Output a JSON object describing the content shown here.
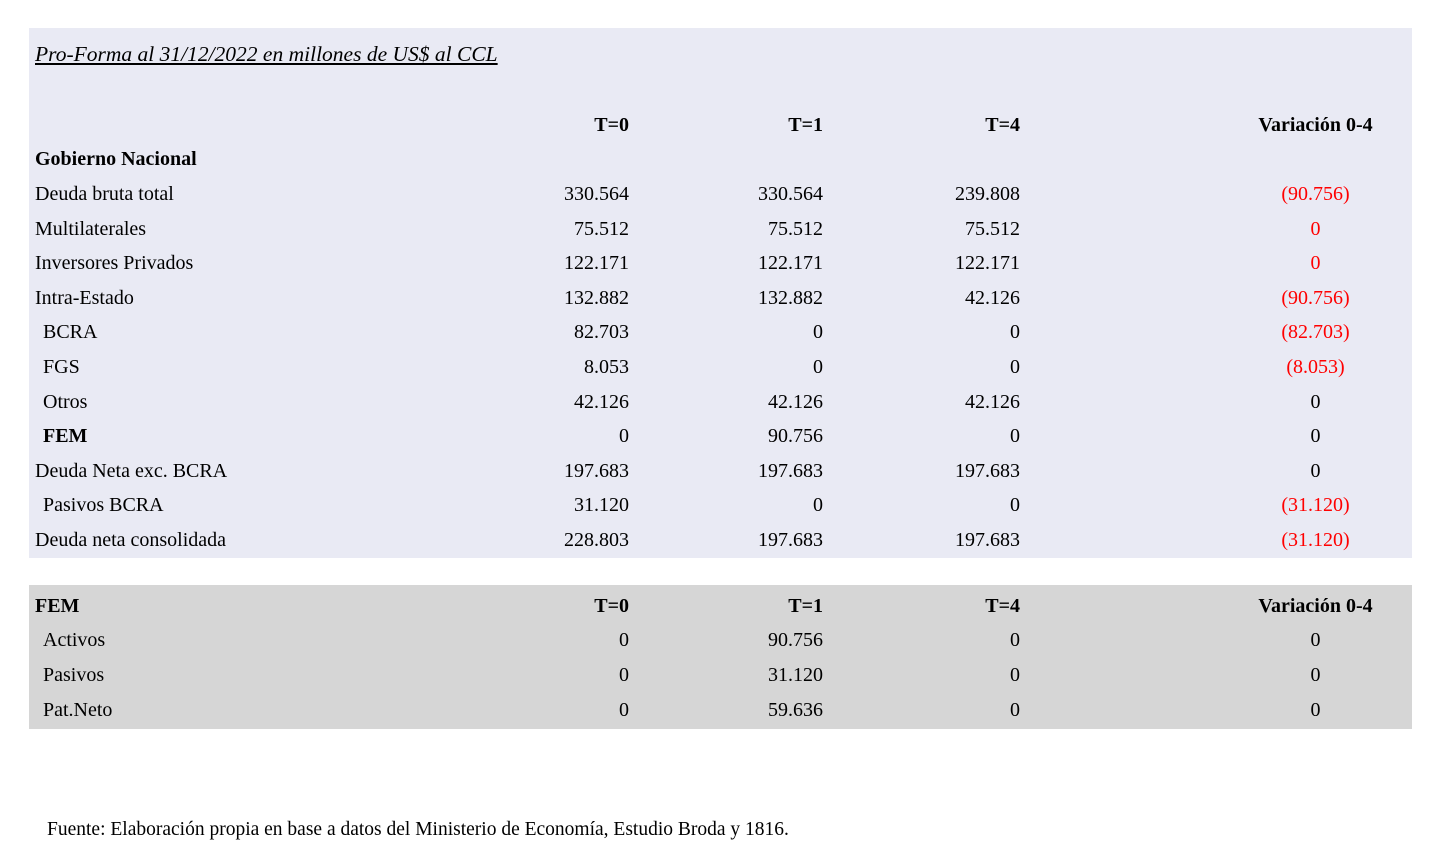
{
  "title": "Pro-Forma al 31/12/2022 en millones de US$ al CCL",
  "columns": {
    "t0": "T=0",
    "t1": "T=1",
    "t4": "T=4",
    "variation": "Variación 0-4"
  },
  "table1": {
    "rows": [
      {
        "label": "Gobierno Nacional",
        "t0": "",
        "t1": "",
        "t4": "",
        "variation": "",
        "negative": false
      },
      {
        "label": "Deuda bruta total",
        "t0": "330.564",
        "t1": "330.564",
        "t4": "239.808",
        "variation": "(90.756)",
        "negative": true
      },
      {
        "label": "Multilaterales",
        "t0": "75.512",
        "t1": "75.512",
        "t4": "75.512",
        "variation": "0",
        "negative": true
      },
      {
        "label": "Inversores Privados",
        "t0": "122.171",
        "t1": "122.171",
        "t4": "122.171",
        "variation": "0",
        "negative": true
      },
      {
        "label": "Intra-Estado",
        "t0": "132.882",
        "t1": "132.882",
        "t4": "42.126",
        "variation": "(90.756)",
        "negative": true
      },
      {
        "label": "BCRA",
        "t0": "82.703",
        "t1": "0",
        "t4": "0",
        "variation": "(82.703)",
        "negative": true
      },
      {
        "label": "FGS",
        "t0": "8.053",
        "t1": "0",
        "t4": "0",
        "variation": "(8.053)",
        "negative": true
      },
      {
        "label": "Otros",
        "t0": "42.126",
        "t1": "42.126",
        "t4": "42.126",
        "variation": "0",
        "negative": false
      },
      {
        "label": "FEM",
        "t0": "0",
        "t1": "90.756",
        "t4": "0",
        "variation": "0",
        "negative": false
      },
      {
        "label": "Deuda Neta exc. BCRA",
        "t0": "197.683",
        "t1": "197.683",
        "t4": "197.683",
        "variation": "0",
        "negative": false
      },
      {
        "label": "Pasivos BCRA",
        "t0": "31.120",
        "t1": "0",
        "t4": "0",
        "variation": "(31.120)",
        "negative": true
      },
      {
        "label": "Deuda neta consolidada",
        "t0": "228.803",
        "t1": "197.683",
        "t4": "197.683",
        "variation": "(31.120)",
        "negative": true
      }
    ]
  },
  "table2": {
    "header_label": "FEM",
    "rows": [
      {
        "label": "Activos",
        "t0": "0",
        "t1": "90.756",
        "t4": "0",
        "variation": "0",
        "negative": false
      },
      {
        "label": "Pasivos",
        "t0": "0",
        "t1": "31.120",
        "t4": "0",
        "variation": "0",
        "negative": false
      },
      {
        "label": "Pat.Neto",
        "t0": "0",
        "t1": "59.636",
        "t4": "0",
        "variation": "0",
        "negative": false
      }
    ]
  },
  "footer": "Fuente: Elaboración propia en base a datos del Ministerio de Economía, Estudio Broda y 1816.",
  "colors": {
    "table1_bg": "#E9EAF4",
    "table2_bg": "#D6D6D6",
    "negative": "#FF0000",
    "text": "#000000",
    "page_bg": "#FFFFFF"
  }
}
